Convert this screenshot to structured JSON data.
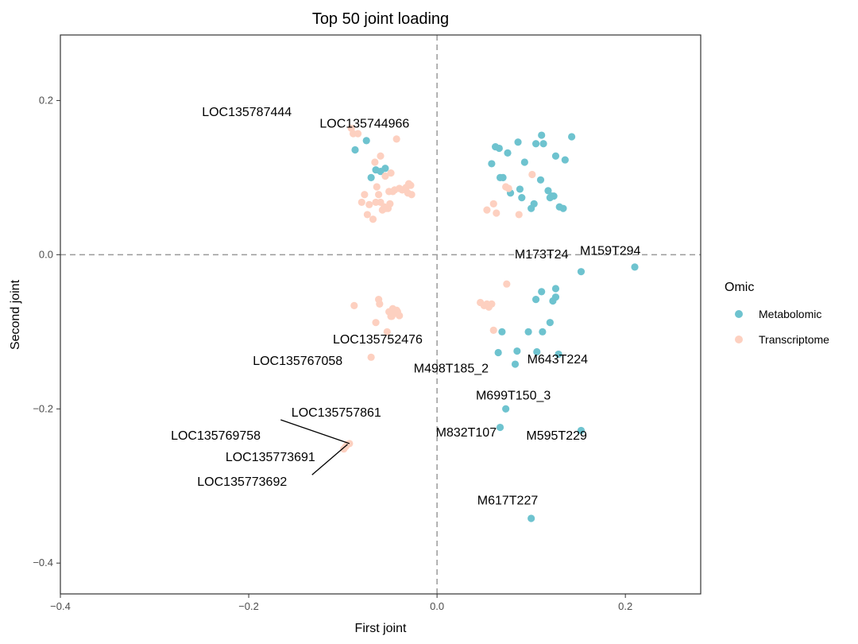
{
  "chart_data": {
    "type": "scatter",
    "title": "Top 50 joint loading",
    "xlabel": "First joint",
    "ylabel": "Second joint",
    "xlim": [
      -0.4,
      0.28
    ],
    "ylim": [
      -0.44,
      0.285
    ],
    "x_ticks": [
      -0.4,
      -0.2,
      0.0,
      0.2
    ],
    "y_ticks": [
      -0.4,
      -0.2,
      0.0,
      0.2
    ],
    "x_tick_labels": [
      "−0.4",
      "−0.2",
      "0.0",
      "0.2"
    ],
    "y_tick_labels": [
      "−0.4",
      "−0.2",
      "0.0",
      "0.2"
    ],
    "reference_lines": {
      "x": 0,
      "y": 0,
      "style": "dashed"
    },
    "legend": {
      "title": "Omic",
      "placement": "right",
      "entries": [
        {
          "name": "Metabolomic",
          "color": "#6ec3cf"
        },
        {
          "name": "Transcriptome",
          "color": "#fdd0c0"
        }
      ]
    },
    "series": [
      {
        "name": "Metabolomic",
        "color": "#6ec3cf",
        "points": [
          [
            -0.087,
            0.136
          ],
          [
            -0.075,
            0.148
          ],
          [
            -0.07,
            0.1
          ],
          [
            -0.065,
            0.11
          ],
          [
            -0.06,
            0.108
          ],
          [
            -0.055,
            0.112
          ],
          [
            0.058,
            0.118
          ],
          [
            0.062,
            0.14
          ],
          [
            0.066,
            0.138
          ],
          [
            0.067,
            0.1
          ],
          [
            0.07,
            0.1
          ],
          [
            0.075,
            0.132
          ],
          [
            0.078,
            0.08
          ],
          [
            0.086,
            0.146
          ],
          [
            0.088,
            0.085
          ],
          [
            0.09,
            0.074
          ],
          [
            0.093,
            0.12
          ],
          [
            0.1,
            0.06
          ],
          [
            0.103,
            0.066
          ],
          [
            0.105,
            0.144
          ],
          [
            0.11,
            0.097
          ],
          [
            0.111,
            0.155
          ],
          [
            0.113,
            0.144
          ],
          [
            0.118,
            0.083
          ],
          [
            0.12,
            0.074
          ],
          [
            0.122,
            0.076
          ],
          [
            0.124,
            0.076
          ],
          [
            0.126,
            0.128
          ],
          [
            0.13,
            0.062
          ],
          [
            0.134,
            0.06
          ],
          [
            0.136,
            0.123
          ],
          [
            0.143,
            0.153
          ],
          [
            0.065,
            -0.127
          ],
          [
            0.069,
            -0.1
          ],
          [
            0.083,
            -0.142
          ],
          [
            0.085,
            -0.125
          ],
          [
            0.097,
            -0.1
          ],
          [
            0.105,
            -0.058
          ],
          [
            0.106,
            -0.126
          ],
          [
            0.111,
            -0.048
          ],
          [
            0.112,
            -0.1
          ],
          [
            0.12,
            -0.088
          ],
          [
            0.123,
            -0.06
          ],
          [
            0.126,
            -0.044
          ],
          [
            0.126,
            -0.055
          ],
          [
            0.129,
            -0.129
          ],
          [
            0.153,
            -0.022
          ],
          [
            0.21,
            -0.016
          ],
          [
            0.067,
            -0.224
          ],
          [
            0.073,
            -0.2
          ],
          [
            0.153,
            -0.228
          ],
          [
            0.1,
            -0.342
          ]
        ]
      },
      {
        "name": "Transcriptome",
        "color": "#fdd0c0",
        "points": [
          [
            -0.091,
            0.164
          ],
          [
            -0.089,
            0.157
          ],
          [
            -0.084,
            0.157
          ],
          [
            -0.08,
            0.068
          ],
          [
            -0.077,
            0.078
          ],
          [
            -0.074,
            0.052
          ],
          [
            -0.072,
            0.065
          ],
          [
            -0.068,
            0.046
          ],
          [
            -0.066,
            0.12
          ],
          [
            -0.065,
            0.068
          ],
          [
            -0.064,
            0.088
          ],
          [
            -0.062,
            0.078
          ],
          [
            -0.06,
            0.128
          ],
          [
            -0.06,
            0.068
          ],
          [
            -0.058,
            0.058
          ],
          [
            -0.056,
            0.062
          ],
          [
            -0.055,
            0.102
          ],
          [
            -0.054,
            0.06
          ],
          [
            -0.052,
            0.06
          ],
          [
            -0.051,
            0.082
          ],
          [
            -0.05,
            0.066
          ],
          [
            -0.049,
            0.106
          ],
          [
            -0.047,
            0.082
          ],
          [
            -0.045,
            0.084
          ],
          [
            -0.043,
            0.15
          ],
          [
            -0.04,
            0.086
          ],
          [
            -0.037,
            0.084
          ],
          [
            -0.033,
            0.087
          ],
          [
            -0.031,
            0.08
          ],
          [
            -0.03,
            0.092
          ],
          [
            -0.028,
            0.09
          ],
          [
            -0.027,
            0.078
          ],
          [
            0.053,
            0.058
          ],
          [
            0.06,
            0.066
          ],
          [
            0.063,
            0.054
          ],
          [
            0.073,
            0.088
          ],
          [
            0.076,
            0.086
          ],
          [
            0.087,
            0.052
          ],
          [
            0.101,
            0.104
          ],
          [
            -0.088,
            -0.066
          ],
          [
            -0.07,
            -0.133
          ],
          [
            -0.065,
            -0.088
          ],
          [
            -0.062,
            -0.058
          ],
          [
            -0.061,
            -0.064
          ],
          [
            -0.053,
            -0.1
          ],
          [
            -0.051,
            -0.074
          ],
          [
            -0.049,
            -0.08
          ],
          [
            -0.048,
            -0.08
          ],
          [
            -0.047,
            -0.07
          ],
          [
            -0.045,
            -0.076
          ],
          [
            -0.043,
            -0.072
          ],
          [
            -0.042,
            -0.074
          ],
          [
            -0.04,
            -0.079
          ],
          [
            0.046,
            -0.062
          ],
          [
            0.05,
            -0.066
          ],
          [
            0.053,
            -0.064
          ],
          [
            0.055,
            -0.068
          ],
          [
            0.058,
            -0.064
          ],
          [
            0.06,
            -0.098
          ],
          [
            0.074,
            -0.038
          ],
          [
            -0.099,
            -0.252
          ],
          [
            -0.097,
            -0.249
          ],
          [
            -0.095,
            -0.246
          ],
          [
            -0.093,
            -0.245
          ]
        ]
      }
    ],
    "annotations": [
      {
        "text": "LOC135787444",
        "x": -0.091,
        "y": 0.164,
        "lx": -0.202,
        "ly": 0.18
      },
      {
        "text": "LOC135744966",
        "x": -0.075,
        "y": 0.148,
        "lx": -0.077,
        "ly": 0.165
      },
      {
        "text": "M173T24",
        "x": 0.153,
        "y": -0.022,
        "lx": 0.111,
        "ly": -0.005
      },
      {
        "text": "M159T294",
        "x": 0.21,
        "y": -0.016,
        "lx": 0.184,
        "ly": 0.0
      },
      {
        "text": "LOC135752476",
        "x": -0.051,
        "y": -0.1,
        "lx": -0.063,
        "ly": -0.115
      },
      {
        "text": "LOC135767058",
        "x": -0.07,
        "y": -0.133,
        "lx": -0.148,
        "ly": -0.143
      },
      {
        "text": "M498T185_2",
        "x": 0.083,
        "y": -0.142,
        "lx": 0.015,
        "ly": -0.153
      },
      {
        "text": "M643T224",
        "x": 0.129,
        "y": -0.129,
        "lx": 0.128,
        "ly": -0.141
      },
      {
        "text": "M699T150_3",
        "x": 0.073,
        "y": -0.2,
        "lx": 0.081,
        "ly": -0.188
      },
      {
        "text": "LOC135757861",
        "x": -0.093,
        "y": -0.245,
        "lx": -0.107,
        "ly": -0.21,
        "leader": true
      },
      {
        "text": "LOC135769758",
        "x": -0.099,
        "y": -0.252,
        "lx": -0.235,
        "ly": -0.24
      },
      {
        "text": "M832T107",
        "x": 0.067,
        "y": -0.224,
        "lx": 0.031,
        "ly": -0.236
      },
      {
        "text": "M595T229",
        "x": 0.153,
        "y": -0.228,
        "lx": 0.127,
        "ly": -0.24
      },
      {
        "text": "LOC135773691",
        "x": -0.097,
        "y": -0.249,
        "lx": -0.177,
        "ly": -0.268
      },
      {
        "text": "LOC135773692",
        "x": -0.095,
        "y": -0.246,
        "lx": -0.207,
        "ly": -0.3,
        "leader": true
      },
      {
        "text": "M617T227",
        "x": 0.1,
        "y": -0.342,
        "lx": 0.075,
        "ly": -0.324
      }
    ]
  }
}
